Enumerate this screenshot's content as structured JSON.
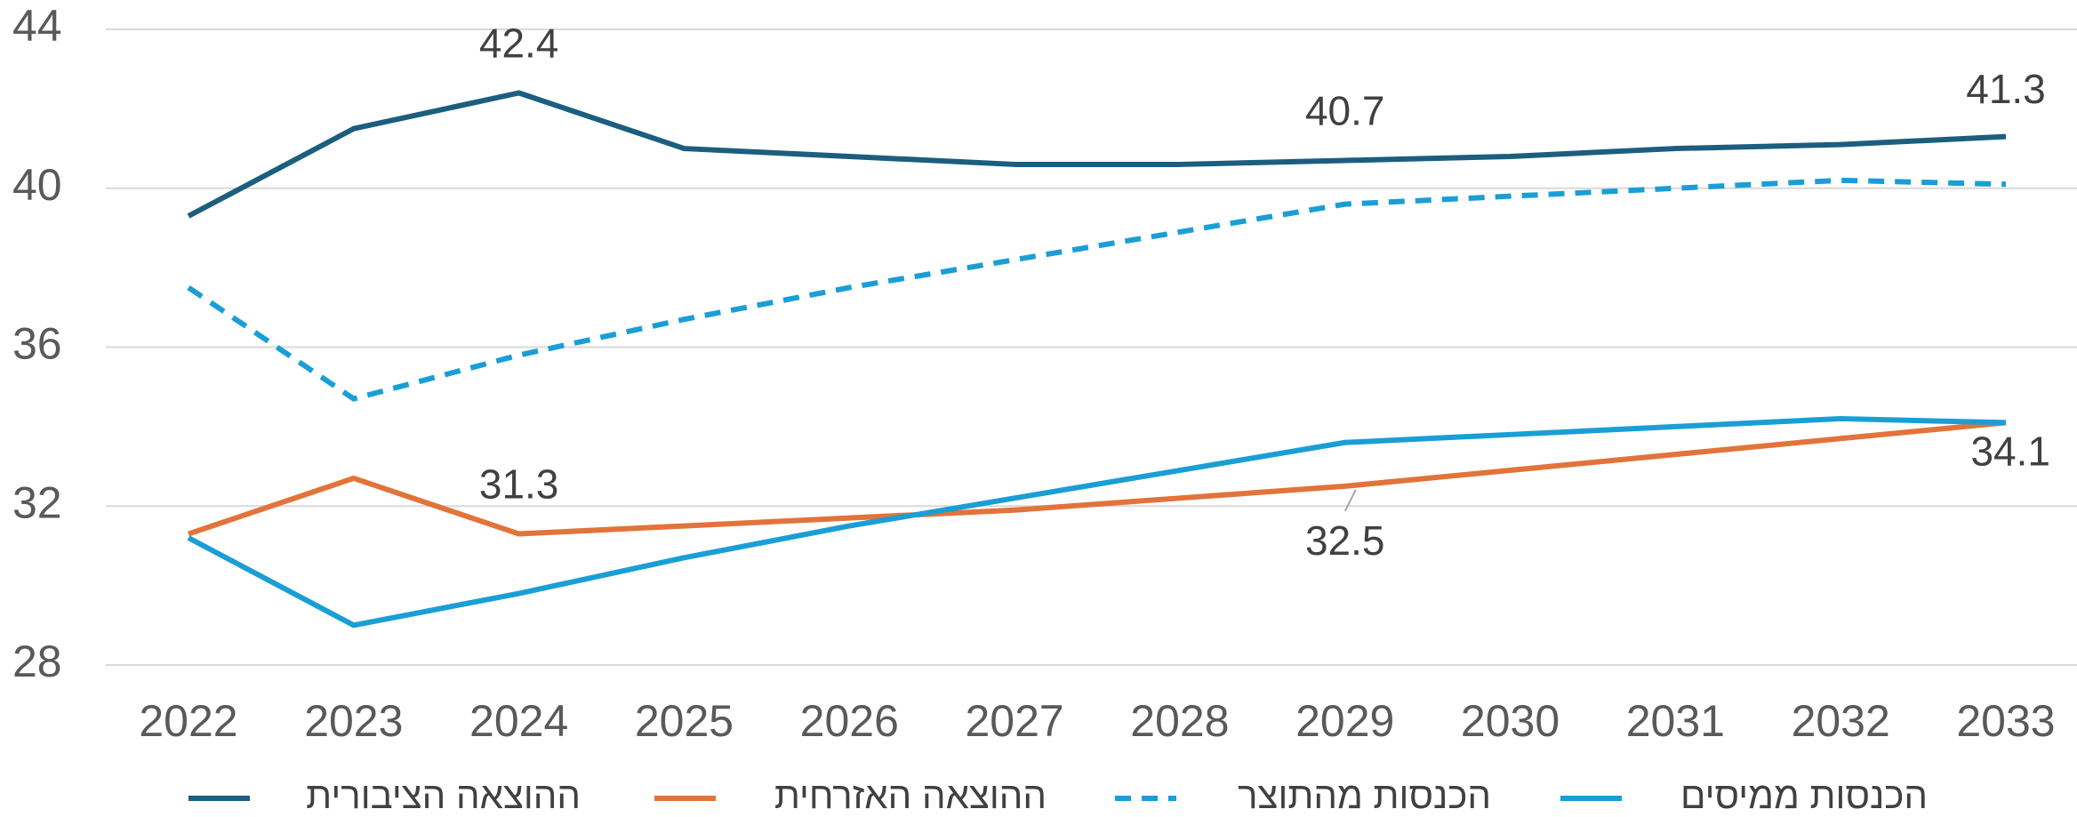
{
  "chart_data": {
    "type": "line",
    "categories": [
      "2022",
      "2023",
      "2024",
      "2025",
      "2026",
      "2027",
      "2028",
      "2029",
      "2030",
      "2031",
      "2032",
      "2033"
    ],
    "ylim": [
      28,
      44
    ],
    "yticks": [
      28,
      32,
      36,
      40,
      44
    ],
    "grid": true,
    "legend": "bottom",
    "series": [
      {
        "name": "ההוצאה הציבורית",
        "color": "#1b5e7e",
        "dash": false,
        "values": [
          39.3,
          41.5,
          42.4,
          41.0,
          40.8,
          40.6,
          40.6,
          40.7,
          40.8,
          41.0,
          41.1,
          41.3
        ],
        "value_labels": [
          null,
          null,
          "42.4",
          null,
          null,
          null,
          null,
          "40.7",
          null,
          null,
          null,
          "41.3"
        ]
      },
      {
        "name": "ההוצאה האזרחית",
        "color": "#e2733a",
        "dash": false,
        "values": [
          31.3,
          32.7,
          31.3,
          31.5,
          31.7,
          31.9,
          32.2,
          32.5,
          32.9,
          33.3,
          33.7,
          34.1
        ],
        "value_labels": [
          null,
          null,
          "31.3",
          null,
          null,
          null,
          null,
          "32.5",
          null,
          null,
          null,
          "34.1"
        ]
      },
      {
        "name": "הכנסות מהתוצר",
        "color": "#1a9ed6",
        "dash": true,
        "values": [
          37.5,
          34.7,
          35.8,
          36.7,
          37.5,
          38.2,
          38.9,
          39.6,
          39.8,
          40.0,
          40.2,
          40.1
        ]
      },
      {
        "name": "הכנסות ממיסים",
        "color": "#1a9ed6",
        "dash": false,
        "values": [
          31.2,
          29.0,
          29.8,
          30.7,
          31.5,
          32.2,
          32.9,
          33.6,
          33.8,
          34.0,
          34.2,
          34.1
        ]
      }
    ]
  }
}
